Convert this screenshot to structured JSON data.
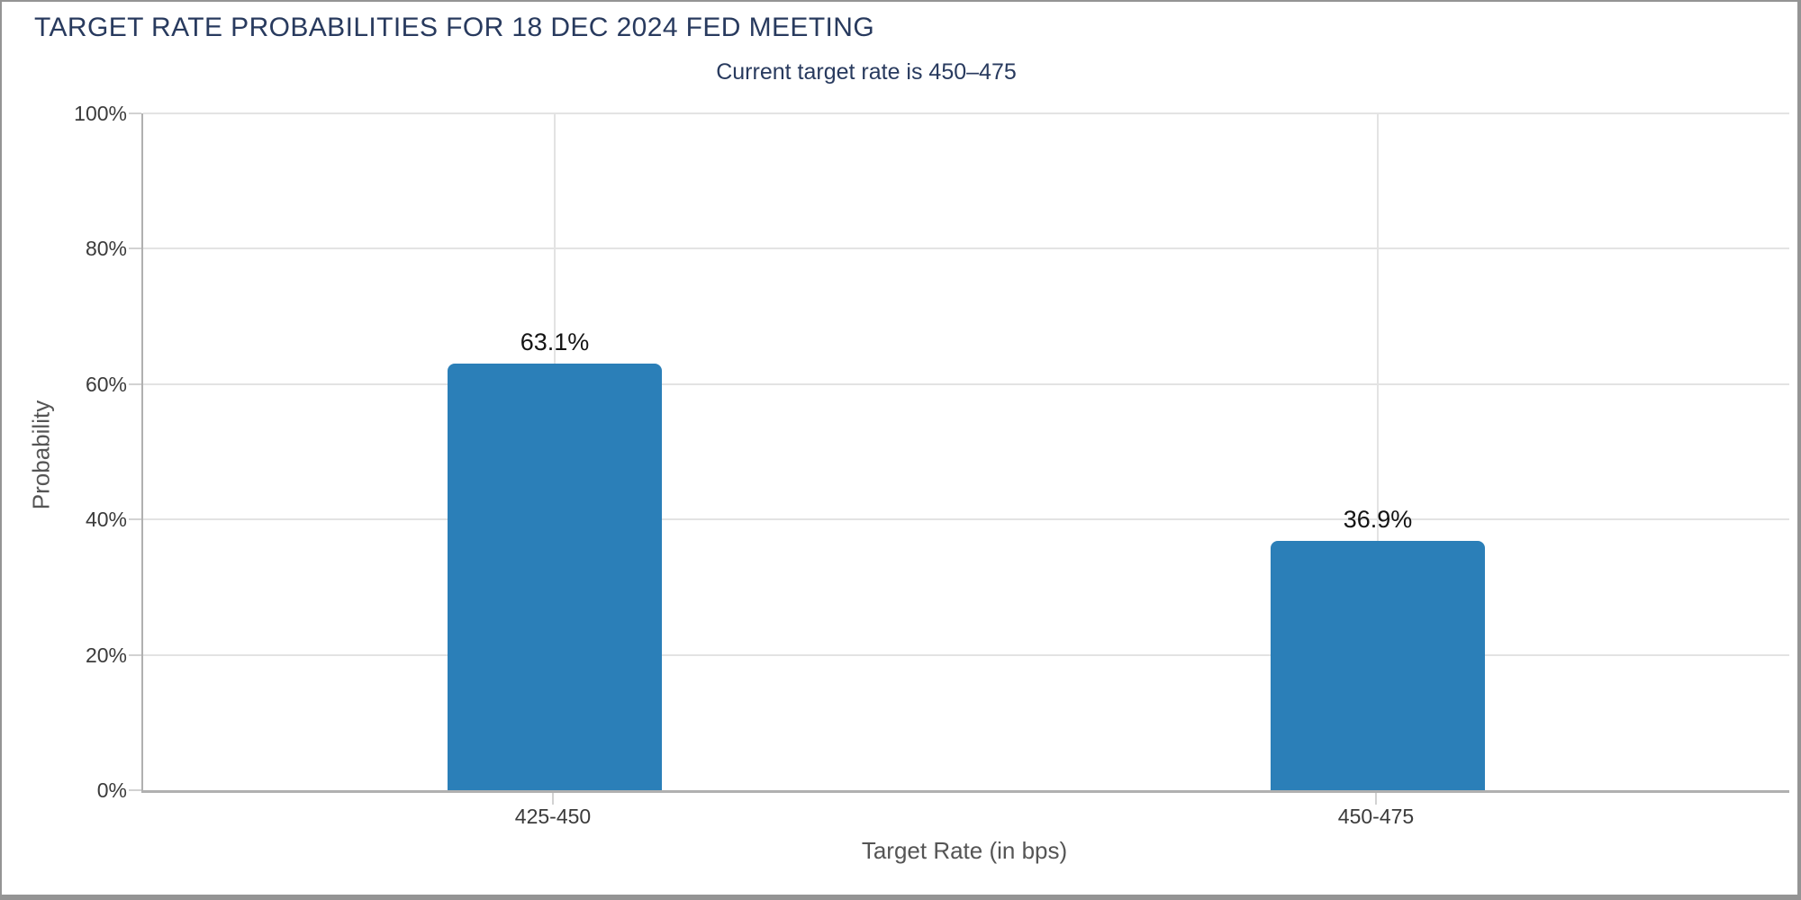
{
  "chart_data": {
    "type": "bar",
    "title": "TARGET RATE PROBABILITIES FOR 18 DEC 2024 FED MEETING",
    "subtitle": "Current target rate is 450–475",
    "categories": [
      "425-450",
      "450-475"
    ],
    "values": [
      63.1,
      36.9
    ],
    "value_labels": [
      "63.1%",
      "36.9%"
    ],
    "xlabel": "Target Rate (in bps)",
    "ylabel": "Probability",
    "ylim": [
      0,
      100
    ],
    "yticks": [
      0,
      20,
      40,
      60,
      80,
      100
    ],
    "ytick_labels": [
      "0%",
      "20%",
      "40%",
      "60%",
      "80%",
      "100%"
    ],
    "legend": "none",
    "grid": {
      "horizontal": true,
      "vertical_at_category_centers": true
    },
    "colors": {
      "bar": "#2b7fb8",
      "title": "#283a5e",
      "subtitle": "#283a5e",
      "gridline": "#e3e3e3",
      "tick": "#d2d2d2",
      "axis": "#b0b0b0",
      "tick_label": "#3b3b3b",
      "axis_title": "#555555",
      "value_label": "#141414",
      "page_border": "#949494",
      "background": "#ffffff"
    }
  }
}
